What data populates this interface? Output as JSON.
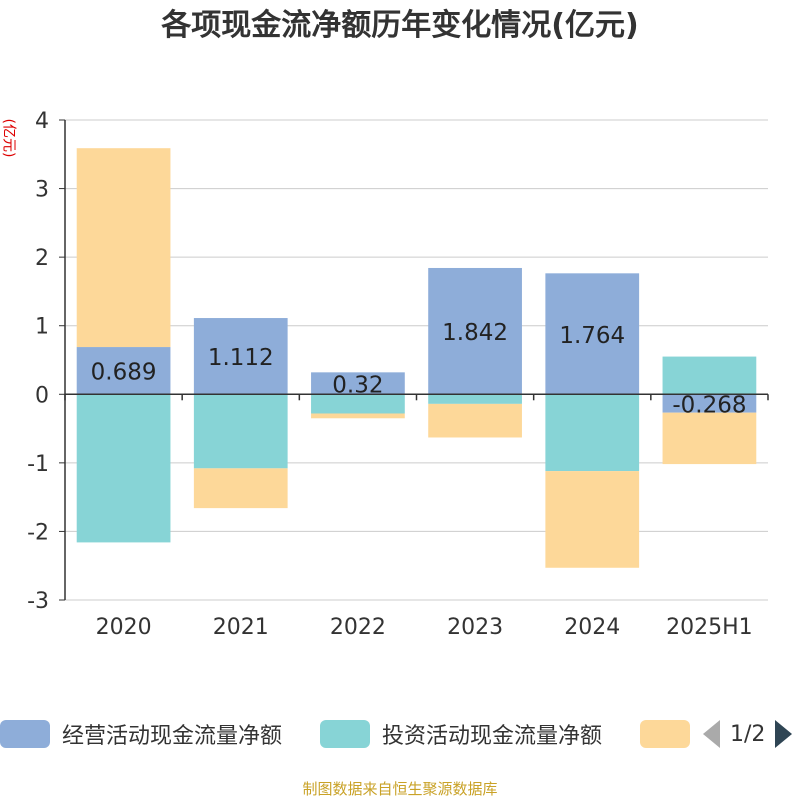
{
  "title": "各项现金流净额历年变化情况(亿元)",
  "y_unit": "(亿元)",
  "source": "制图数据来自恒生聚源数据库",
  "colors": {
    "operating": "#8eadd9",
    "investing": "#87d4d6",
    "financing": "#fdd899",
    "axis": "#333333",
    "grid": "#cccccc"
  },
  "legend": {
    "items": [
      {
        "label": "经营活动现金流量净额",
        "color": "#8eadd9"
      },
      {
        "label": "投资活动现金流量净额",
        "color": "#87d4d6"
      },
      {
        "label": "",
        "color": "#fdd899"
      }
    ],
    "page_text": "1/2"
  },
  "chart_data": {
    "type": "bar",
    "stacked": true,
    "categories": [
      "2020",
      "2021",
      "2022",
      "2023",
      "2024",
      "2025H1"
    ],
    "ylim": [
      -3,
      4
    ],
    "yticks": [
      -3,
      -2,
      -1,
      0,
      1,
      2,
      3,
      4
    ],
    "grid": true,
    "legend_position": "bottom",
    "series": [
      {
        "name": "经营活动现金流量净额",
        "values": [
          0.689,
          1.112,
          0.32,
          1.842,
          1.764,
          -0.268
        ],
        "labels": [
          "0.689",
          "1.112",
          "0.32",
          "1.842",
          "1.764",
          "-0.268"
        ]
      },
      {
        "name": "投资活动现金流量净额",
        "values": [
          -2.16,
          -1.08,
          -0.28,
          -0.14,
          -1.12,
          0.55
        ]
      },
      {
        "name": "",
        "values": [
          2.9,
          -0.58,
          -0.07,
          -0.49,
          -1.41,
          -0.75
        ]
      }
    ]
  }
}
